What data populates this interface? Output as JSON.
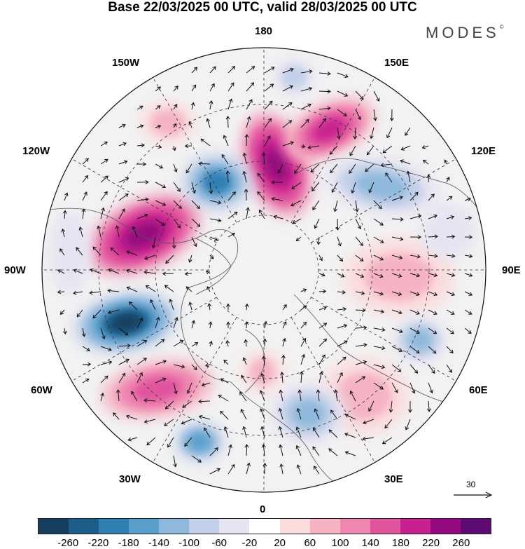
{
  "title": "Base 22/03/2025 00 UTC, valid 28/03/2025 00 UTC",
  "brand": "MODES",
  "brand_mark": "©",
  "meridian_labels": {
    "top": "180",
    "bottom": "0",
    "left": "90W",
    "right": "90E",
    "upper_left_1": "150W",
    "upper_left_2": "120W",
    "lower_left_1": "60W",
    "lower_left_2": "30W",
    "upper_right_1": "150E",
    "upper_right_2": "120E",
    "lower_right_1": "60E",
    "lower_right_2": "30E"
  },
  "reference_vector": {
    "label": "30",
    "icon": "arrow-right-icon"
  },
  "colorbar": {
    "colors": [
      "#163f5f",
      "#1d5d8a",
      "#2f7fb5",
      "#5a9fcc",
      "#8fb9dc",
      "#c2d0e8",
      "#e6e4f1",
      "#ffffff",
      "#fbdcdd",
      "#f5b3c3",
      "#ee86b0",
      "#e0559e",
      "#c8208e",
      "#96087e",
      "#5c0b72"
    ],
    "tick_labels": [
      "-260",
      "-220",
      "-180",
      "-140",
      "-100",
      "-60",
      "-20",
      "20",
      "60",
      "100",
      "140",
      "180",
      "220",
      "260"
    ]
  }
}
